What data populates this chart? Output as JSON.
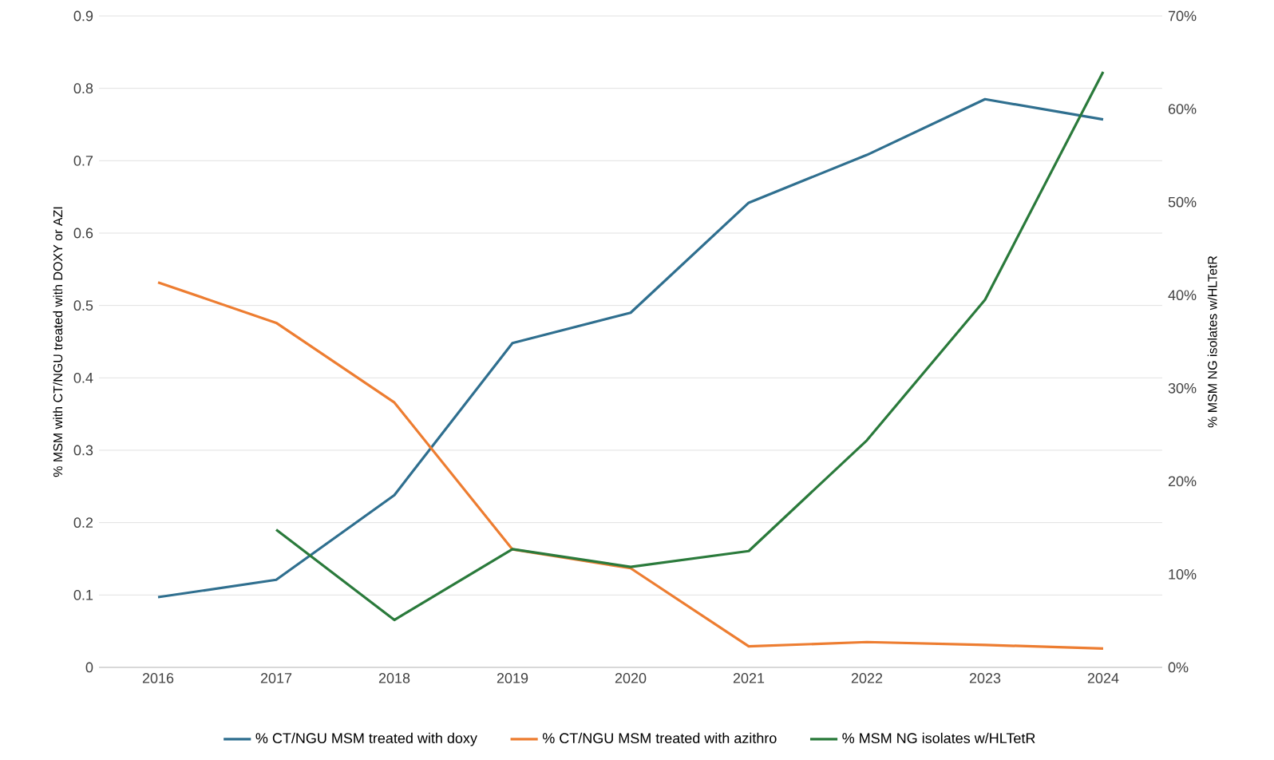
{
  "chart_data": {
    "type": "line",
    "ylabel": "% MSM with CT/NGU treated with DOXY or AZI",
    "y2label": "% MSM NG isolates w/HLTetR",
    "categories": [
      "2016",
      "2017",
      "2018",
      "2019",
      "2020",
      "2021",
      "2022",
      "2023",
      "2024"
    ],
    "series": [
      {
        "name": "% CT/NGU MSM treated with doxy",
        "color": "#2f6f8f",
        "values": [
          0.097,
          0.121,
          0.238,
          0.448,
          0.49,
          0.642,
          0.708,
          0.785,
          0.757
        ]
      },
      {
        "name": "% CT/NGU MSM treated with azithro",
        "color": "#ed7d31",
        "values": [
          0.532,
          0.476,
          0.366,
          0.163,
          0.137,
          0.029,
          0.035,
          0.031,
          0.026
        ]
      },
      {
        "name": "% MSM NG isolates w/HLTetR",
        "color": "#2a7a3b",
        "axis": "y2",
        "values": [
          null,
          14.8,
          5.1,
          12.7,
          10.8,
          12.5,
          24.4,
          39.5,
          64.0
        ]
      }
    ],
    "ylim": [
      0,
      0.9
    ],
    "yticks": [
      0,
      0.1,
      0.2,
      0.3,
      0.4,
      0.5,
      0.6,
      0.7,
      0.8,
      0.9
    ],
    "y2lim": [
      0,
      70
    ],
    "y2ticks": [
      {
        "value": 0,
        "label": "0%"
      },
      {
        "value": 10,
        "label": "10%"
      },
      {
        "value": 20,
        "label": "20%"
      },
      {
        "value": 30,
        "label": "30%"
      },
      {
        "value": 40,
        "label": "40%"
      },
      {
        "value": 50,
        "label": "50%"
      },
      {
        "value": 60,
        "label": "60%"
      },
      {
        "value": 70,
        "label": "70%"
      }
    ],
    "grid": "y",
    "legend": "bottom"
  }
}
